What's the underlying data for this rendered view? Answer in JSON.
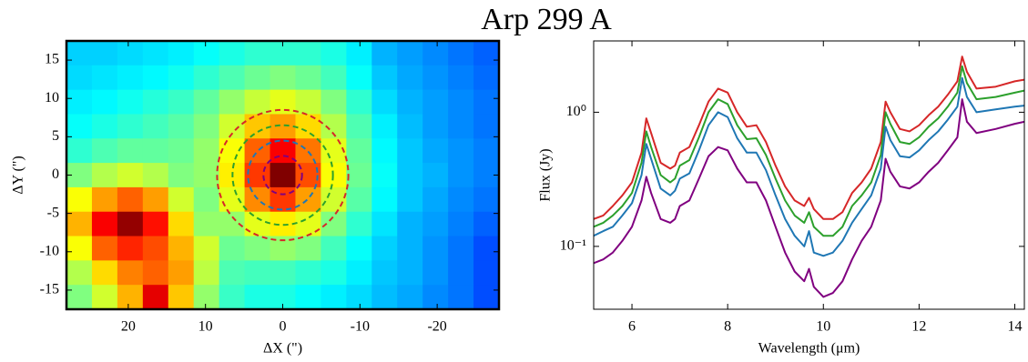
{
  "title": "Arp 299 A",
  "chart_data": [
    {
      "type": "heatmap",
      "colormap": "jet",
      "xlabel": "ΔX (\")",
      "ylabel": "ΔY (\")",
      "xlim": [
        28,
        -28
      ],
      "ylim": [
        -17.5,
        17.5
      ],
      "xticks": [
        20,
        10,
        0,
        -10,
        -20
      ],
      "yticks": [
        15,
        10,
        5,
        0,
        -5,
        -10,
        -15
      ],
      "values": [
        [
          0.33,
          0.33,
          0.34,
          0.35,
          0.36,
          0.38,
          0.4,
          0.42,
          0.42,
          0.42,
          0.4,
          0.36,
          0.3,
          0.28,
          0.26,
          0.24,
          0.22
        ],
        [
          0.34,
          0.35,
          0.36,
          0.37,
          0.39,
          0.42,
          0.45,
          0.48,
          0.5,
          0.48,
          0.44,
          0.38,
          0.32,
          0.29,
          0.27,
          0.25,
          0.23
        ],
        [
          0.36,
          0.37,
          0.39,
          0.41,
          0.43,
          0.47,
          0.52,
          0.57,
          0.6,
          0.57,
          0.5,
          0.42,
          0.34,
          0.3,
          0.28,
          0.26,
          0.24
        ],
        [
          0.38,
          0.4,
          0.42,
          0.44,
          0.46,
          0.5,
          0.58,
          0.68,
          0.72,
          0.66,
          0.55,
          0.45,
          0.36,
          0.31,
          0.28,
          0.26,
          0.24
        ],
        [
          0.42,
          0.45,
          0.47,
          0.47,
          0.48,
          0.52,
          0.62,
          0.78,
          0.88,
          0.76,
          0.6,
          0.47,
          0.37,
          0.32,
          0.29,
          0.27,
          0.25
        ],
        [
          0.5,
          0.55,
          0.58,
          0.55,
          0.5,
          0.52,
          0.64,
          0.82,
          1.0,
          0.8,
          0.62,
          0.48,
          0.38,
          0.32,
          0.3,
          0.27,
          0.25
        ],
        [
          0.62,
          0.72,
          0.78,
          0.72,
          0.58,
          0.5,
          0.6,
          0.74,
          0.82,
          0.72,
          0.58,
          0.46,
          0.37,
          0.32,
          0.29,
          0.26,
          0.24
        ],
        [
          0.7,
          0.88,
          0.98,
          0.86,
          0.66,
          0.52,
          0.52,
          0.6,
          0.64,
          0.6,
          0.5,
          0.42,
          0.35,
          0.3,
          0.28,
          0.25,
          0.22
        ],
        [
          0.62,
          0.78,
          0.84,
          0.8,
          0.7,
          0.58,
          0.48,
          0.5,
          0.52,
          0.5,
          0.44,
          0.38,
          0.33,
          0.3,
          0.27,
          0.24,
          0.2
        ],
        [
          0.55,
          0.66,
          0.75,
          0.78,
          0.72,
          0.56,
          0.45,
          0.44,
          0.44,
          0.42,
          0.4,
          0.36,
          0.32,
          0.3,
          0.27,
          0.24,
          0.2
        ],
        [
          0.5,
          0.58,
          0.7,
          0.9,
          0.68,
          0.52,
          0.43,
          0.4,
          0.4,
          0.38,
          0.36,
          0.34,
          0.31,
          0.29,
          0.26,
          0.24,
          0.2
        ]
      ],
      "apertures": [
        {
          "x": 0,
          "y": 0,
          "radius": 2.5,
          "color": "#800080"
        },
        {
          "x": 0,
          "y": 0,
          "radius": 4.5,
          "color": "#1f77b4"
        },
        {
          "x": 0,
          "y": 0,
          "radius": 6.5,
          "color": "#2ca02c"
        },
        {
          "x": 0,
          "y": 0,
          "radius": 8.5,
          "color": "#d62728"
        }
      ]
    },
    {
      "type": "line",
      "log_y": true,
      "xlabel": "Wavelength (μm)",
      "ylabel": "Flux (Jy)",
      "xlim": [
        5.2,
        14.2
      ],
      "ylim": [
        0.034,
        3.4
      ],
      "xticks": [
        6,
        8,
        10,
        12,
        14
      ],
      "yticks": [
        {
          "value": 0.1,
          "label": "10⁻¹"
        },
        {
          "value": 1,
          "label": "10⁰"
        }
      ],
      "x": [
        5.2,
        5.4,
        5.6,
        5.8,
        6.0,
        6.2,
        6.3,
        6.4,
        6.6,
        6.8,
        6.9,
        7.0,
        7.2,
        7.4,
        7.6,
        7.8,
        8.0,
        8.2,
        8.4,
        8.6,
        8.8,
        9.0,
        9.2,
        9.4,
        9.6,
        9.7,
        9.8,
        10.0,
        10.2,
        10.4,
        10.6,
        10.8,
        11.0,
        11.2,
        11.3,
        11.4,
        11.6,
        11.8,
        12.0,
        12.2,
        12.4,
        12.6,
        12.8,
        12.9,
        13.0,
        13.2,
        13.6,
        14.0,
        14.2
      ],
      "series": [
        {
          "color": "#d62728",
          "values": [
            0.16,
            0.17,
            0.2,
            0.24,
            0.3,
            0.5,
            0.9,
            0.7,
            0.42,
            0.38,
            0.4,
            0.5,
            0.55,
            0.8,
            1.2,
            1.5,
            1.4,
            1.0,
            0.78,
            0.8,
            0.6,
            0.4,
            0.28,
            0.22,
            0.2,
            0.23,
            0.19,
            0.16,
            0.16,
            0.18,
            0.25,
            0.3,
            0.38,
            0.6,
            1.2,
            1.0,
            0.75,
            0.72,
            0.8,
            0.95,
            1.1,
            1.35,
            1.7,
            2.6,
            2.0,
            1.5,
            1.55,
            1.7,
            1.75
          ]
        },
        {
          "color": "#2ca02c",
          "values": [
            0.14,
            0.15,
            0.17,
            0.2,
            0.25,
            0.42,
            0.72,
            0.55,
            0.34,
            0.3,
            0.32,
            0.4,
            0.44,
            0.65,
            1.0,
            1.25,
            1.15,
            0.8,
            0.63,
            0.64,
            0.48,
            0.32,
            0.22,
            0.17,
            0.15,
            0.18,
            0.14,
            0.12,
            0.12,
            0.14,
            0.2,
            0.24,
            0.3,
            0.48,
            1.0,
            0.82,
            0.6,
            0.58,
            0.65,
            0.78,
            0.9,
            1.1,
            1.4,
            2.2,
            1.65,
            1.25,
            1.3,
            1.4,
            1.45
          ]
        },
        {
          "color": "#1f77b4",
          "values": [
            0.12,
            0.13,
            0.14,
            0.17,
            0.21,
            0.34,
            0.58,
            0.45,
            0.27,
            0.24,
            0.26,
            0.32,
            0.35,
            0.52,
            0.8,
            1.0,
            0.92,
            0.64,
            0.5,
            0.5,
            0.37,
            0.24,
            0.16,
            0.12,
            0.1,
            0.13,
            0.09,
            0.085,
            0.09,
            0.11,
            0.15,
            0.19,
            0.24,
            0.38,
            0.78,
            0.62,
            0.47,
            0.46,
            0.52,
            0.62,
            0.72,
            0.88,
            1.1,
            1.8,
            1.3,
            1.0,
            1.05,
            1.1,
            1.12
          ]
        },
        {
          "color": "#800080",
          "values": [
            0.075,
            0.08,
            0.09,
            0.11,
            0.14,
            0.22,
            0.33,
            0.25,
            0.16,
            0.15,
            0.16,
            0.2,
            0.22,
            0.32,
            0.47,
            0.55,
            0.52,
            0.38,
            0.3,
            0.3,
            0.22,
            0.14,
            0.09,
            0.065,
            0.055,
            0.068,
            0.05,
            0.042,
            0.045,
            0.055,
            0.08,
            0.11,
            0.14,
            0.22,
            0.45,
            0.36,
            0.28,
            0.27,
            0.3,
            0.36,
            0.42,
            0.52,
            0.65,
            1.25,
            0.85,
            0.7,
            0.75,
            0.82,
            0.85
          ]
        }
      ]
    }
  ]
}
